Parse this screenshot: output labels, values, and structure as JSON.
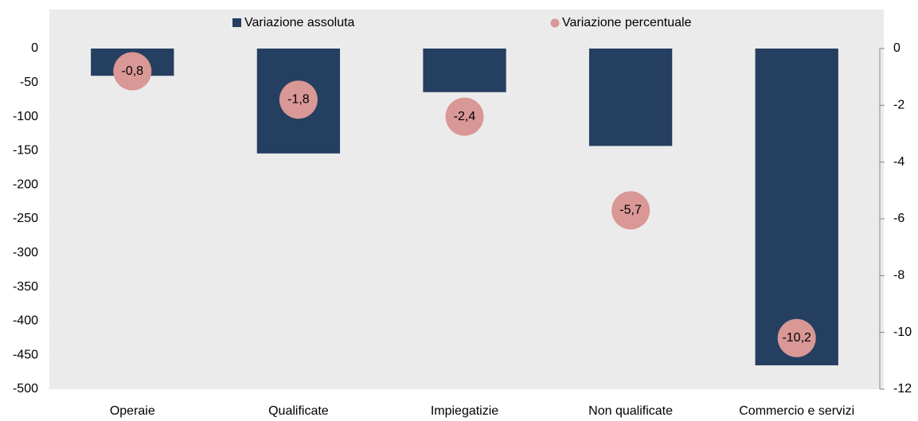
{
  "chart_data": {
    "type": "bar",
    "categories": [
      "Operaie",
      "Qualificate",
      "Impiegatizie",
      "Non qualificate",
      "Commercio e servizi"
    ],
    "series": [
      {
        "name": "Variazione assoluta",
        "color": "#253f60",
        "values": [
          -40,
          -154,
          -64,
          -143,
          -465
        ]
      },
      {
        "name": "Variazione percentuale",
        "color": "#d99795",
        "axis": "y2",
        "values": [
          -0.8,
          -1.8,
          -2.4,
          -5.7,
          -10.2
        ],
        "value_labels": [
          "-0,8",
          "-1,8",
          "-2,4",
          "-5,7",
          "-10,2"
        ]
      }
    ],
    "ylim": [
      -500,
      0
    ],
    "yticks": [
      0,
      -50,
      -100,
      -150,
      -200,
      -250,
      -300,
      -350,
      -400,
      -450,
      -500
    ],
    "y2lim": [
      -12,
      0
    ],
    "y2ticks": [
      0,
      -2,
      -4,
      -6,
      -8,
      -10,
      -12
    ],
    "legend": "top"
  }
}
